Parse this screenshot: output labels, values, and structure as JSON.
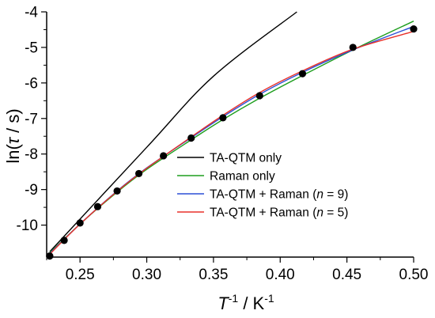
{
  "chart_data": {
    "type": "scatter",
    "xlabel": {
      "main": "T",
      "sup1": "-1",
      "rest": " / K",
      "sup2": "-1"
    },
    "ylabel": {
      "pre": "ln(",
      "var": "τ",
      "post": " / s)"
    },
    "xlim": [
      0.225,
      0.5
    ],
    "ylim": [
      -10.9,
      -4.0
    ],
    "x_ticks": [
      0.25,
      0.3,
      0.35,
      0.4,
      0.45,
      0.5
    ],
    "x_tick_labels": [
      "0.25",
      "0.30",
      "0.35",
      "0.40",
      "0.45",
      "0.50"
    ],
    "y_ticks": [
      -10,
      -9,
      -8,
      -7,
      -6,
      -5,
      -4
    ],
    "y_tick_labels": [
      "-10",
      "-9",
      "-8",
      "-7",
      "-6",
      "-5",
      "-4"
    ],
    "grid": false,
    "legend_position": "lower-right",
    "points": {
      "x": [
        0.2273,
        0.2381,
        0.25,
        0.2632,
        0.2778,
        0.2941,
        0.3125,
        0.3333,
        0.3571,
        0.3846,
        0.4167,
        0.4545,
        0.5
      ],
      "y": [
        -10.87,
        -10.43,
        -9.94,
        -9.48,
        -9.04,
        -8.55,
        -8.05,
        -7.55,
        -6.98,
        -6.36,
        -5.74,
        -5.0,
        -4.48
      ],
      "color": "#000000"
    },
    "series": [
      {
        "legend": {
          "pre": "TA-QTM only",
          "italic": "",
          "post": ""
        },
        "color": "#000000",
        "x": [
          0.2273,
          0.3,
          0.35,
          0.4125
        ],
        "y": [
          -10.75,
          -7.81,
          -5.81,
          -4.0
        ]
      },
      {
        "legend": {
          "pre": "Raman only",
          "italic": "",
          "post": ""
        },
        "color": "#1e9e1e",
        "x": [
          0.2273,
          0.25,
          0.2778,
          0.3,
          0.3333,
          0.3571,
          0.3846,
          0.4167,
          0.4545,
          0.5
        ],
        "y": [
          -10.78,
          -9.97,
          -9.07,
          -8.43,
          -7.6,
          -7.03,
          -6.43,
          -5.79,
          -5.07,
          -4.26
        ]
      },
      {
        "legend": {
          "pre": "TA-QTM + Raman (",
          "italic": "n",
          "post": " = 9)"
        },
        "color": "#2b4fd6",
        "x": [
          0.2273,
          0.25,
          0.2778,
          0.3,
          0.3333,
          0.3571,
          0.3846,
          0.4167,
          0.4545,
          0.5
        ],
        "y": [
          -10.8,
          -9.97,
          -9.04,
          -8.39,
          -7.54,
          -6.95,
          -6.32,
          -5.7,
          -5.07,
          -4.41
        ]
      },
      {
        "legend": {
          "pre": "TA-QTM + Raman (",
          "italic": "n",
          "post": " = 5)"
        },
        "color": "#e8302a",
        "x": [
          0.2273,
          0.25,
          0.2778,
          0.3,
          0.3333,
          0.3571,
          0.3846,
          0.4167,
          0.4545,
          0.5
        ],
        "y": [
          -10.82,
          -9.97,
          -9.05,
          -8.4,
          -7.52,
          -6.91,
          -6.27,
          -5.66,
          -5.05,
          -4.55
        ]
      }
    ]
  }
}
